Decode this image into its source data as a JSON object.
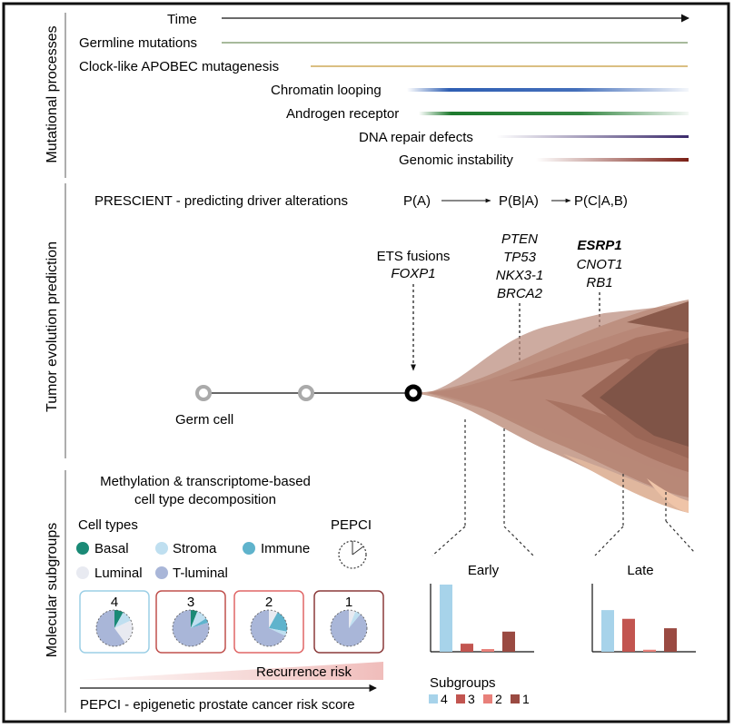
{
  "sections": {
    "mutational": "Mutational processes",
    "tumor": "Tumor evolution prediction",
    "molecular": "Molecular subgroups"
  },
  "time_label": "Time",
  "processes": [
    {
      "label": "Germline mutations",
      "color": "#8aa37a"
    },
    {
      "label": "Clock-like APOBEC mutagenesis",
      "color": "#d4b670"
    },
    {
      "label": "Chromatin looping",
      "color": "#2f5fb3"
    },
    {
      "label": "Androgen receptor",
      "color": "#1e7a2e"
    },
    {
      "label": "DNA repair defects",
      "color": "#3b2a6b"
    },
    {
      "label": "Genomic instability",
      "color": "#7a1f15"
    }
  ],
  "prescient": {
    "title": "PRESCIENT - predicting driver alterations",
    "p1": "P(A)",
    "p2": "P(B|A)",
    "p3": "P(C|A,B)"
  },
  "drivers": {
    "g1_title": "ETS fusions",
    "g1": [
      "FOXP1"
    ],
    "g2": [
      "PTEN",
      "TP53",
      "NKX3-1",
      "BRCA2"
    ],
    "g3_bold": "ESRP1",
    "g3": [
      "CNOT1",
      "RB1"
    ]
  },
  "germ_cell": "Germ cell",
  "decomposition": {
    "line1": "Methylation & transcriptome-based",
    "line2": "cell type decomposition"
  },
  "cell_types": {
    "title": "Cell types",
    "items": [
      {
        "label": "Basal",
        "color": "#1a8a76"
      },
      {
        "label": "Stroma",
        "color": "#bfdff0"
      },
      {
        "label": "Immune",
        "color": "#5fb3cc"
      },
      {
        "label": "Luminal",
        "color": "#e8eaf1"
      },
      {
        "label": "T-luminal",
        "color": "#a9b6d8"
      }
    ]
  },
  "pepci_label": "PEPCI",
  "groups": [
    {
      "num": "4",
      "border": "#9ccfe6"
    },
    {
      "num": "3",
      "border": "#c0504d"
    },
    {
      "num": "2",
      "border": "#e06666"
    },
    {
      "num": "1",
      "border": "#8b3a3a"
    }
  ],
  "risk_label": "Recurrence risk",
  "pepci_full": "PEPCI - epigenetic prostate cancer risk score",
  "early": {
    "title": "Early",
    "values": [
      1.0,
      0.12,
      0.04,
      0.3
    ]
  },
  "late": {
    "title": "Late",
    "values": [
      0.62,
      0.49,
      0.03,
      0.35
    ]
  },
  "subgroups": {
    "title": "Subgroups",
    "items": [
      {
        "label": "4",
        "color": "#a7d3ea"
      },
      {
        "label": "3",
        "color": "#c25550"
      },
      {
        "label": "2",
        "color": "#e8807a"
      },
      {
        "label": "1",
        "color": "#9a4a42"
      }
    ]
  }
}
